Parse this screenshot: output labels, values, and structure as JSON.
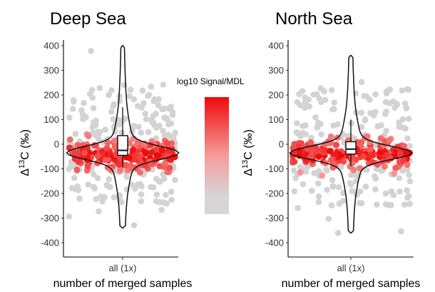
{
  "chart_data": [
    {
      "type": "scatter",
      "title": "Deep Sea",
      "xlabel": "number of merged samples",
      "ylabel_prefix": "Δ",
      "ylabel_sup": "13",
      "ylabel_suffix": "C (‰)",
      "categories": [
        "all (1x)"
      ],
      "ylim": [
        -420,
        420
      ],
      "yticks": [
        400,
        300,
        200,
        100,
        0,
        -100,
        -200,
        -300,
        -400
      ],
      "grid": false,
      "overlay": "violin + boxplot",
      "boxplot": {
        "q1": -45,
        "median": -25,
        "q3": 35,
        "whisker_low": -95,
        "whisker_high": 150
      },
      "violin": {
        "min": -340,
        "max": 400
      },
      "points": {
        "gray_range": [
          -350,
          400
        ],
        "red_band": [
          -110,
          20
        ],
        "approx_count": 450
      }
    },
    {
      "type": "scatter",
      "title": "North Sea",
      "xlabel": "number of merged samples",
      "ylabel_prefix": "Δ",
      "ylabel_sup": "13",
      "ylabel_suffix": "C (‰)",
      "categories": [
        "all (1x)"
      ],
      "ylim": [
        -420,
        420
      ],
      "yticks": [
        400,
        300,
        200,
        100,
        0,
        -100,
        -200,
        -300,
        -400
      ],
      "grid": false,
      "overlay": "violin + boxplot",
      "boxplot": {
        "q1": -40,
        "median": -20,
        "q3": 10,
        "whisker_low": -90,
        "whisker_high": 100
      },
      "violin": {
        "min": -360,
        "max": 360
      },
      "points": {
        "gray_range": [
          -360,
          380
        ],
        "red_band": [
          -100,
          20
        ],
        "approx_count": 420
      }
    }
  ],
  "legend": {
    "title": "log10 Signal/MDL",
    "colors": {
      "high": "#ee0a0a",
      "mid": "#f79b9b",
      "low": "#d6d6d6"
    }
  },
  "colors": {
    "point_gray": "#d3d3d3",
    "point_red": "#ef0d0d",
    "axis": "#000000"
  }
}
